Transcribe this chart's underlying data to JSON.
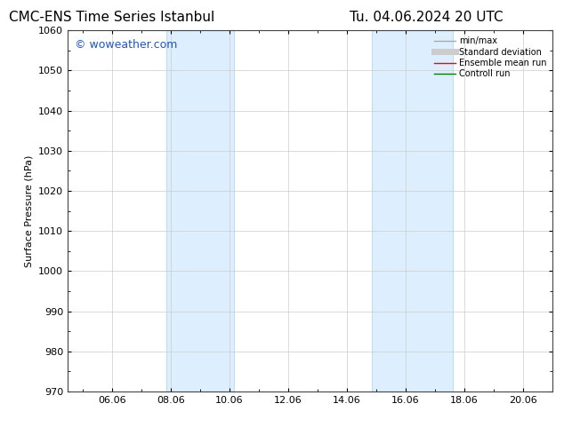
{
  "title_left": "CMC-ENS Time Series Istanbul",
  "title_right": "Tu. 04.06.2024 20 UTC",
  "ylabel": "Surface Pressure (hPa)",
  "ylim": [
    970,
    1060
  ],
  "yticks": [
    970,
    980,
    990,
    1000,
    1010,
    1020,
    1030,
    1040,
    1050,
    1060
  ],
  "xlim_start": 4.5,
  "xlim_end": 21.0,
  "xtick_labels": [
    "06.06",
    "08.06",
    "10.06",
    "12.06",
    "14.06",
    "16.06",
    "18.06",
    "20.06"
  ],
  "xtick_positions": [
    6,
    8,
    10,
    12,
    14,
    16,
    18,
    20
  ],
  "shaded_bands": [
    {
      "x_start": 7.85,
      "x_end": 10.15
    },
    {
      "x_start": 14.85,
      "x_end": 17.6
    }
  ],
  "band_color": "#ddeeff",
  "band_edge_color": "#bbddee",
  "watermark": "© woweather.com",
  "watermark_color": "#2255bb",
  "watermark_fontsize": 9,
  "legend_entries": [
    {
      "label": "min/max",
      "color": "#aaaaaa",
      "lw": 1.0,
      "ls": "-"
    },
    {
      "label": "Standard deviation",
      "color": "#cccccc",
      "lw": 5,
      "ls": "-"
    },
    {
      "label": "Ensemble mean run",
      "color": "red",
      "lw": 1.0,
      "ls": "-"
    },
    {
      "label": "Controll run",
      "color": "green",
      "lw": 1.0,
      "ls": "-"
    }
  ],
  "bg_color": "#ffffff",
  "grid_color": "#cccccc",
  "title_fontsize": 11,
  "axis_fontsize": 8,
  "tick_fontsize": 8,
  "legend_fontsize": 7
}
